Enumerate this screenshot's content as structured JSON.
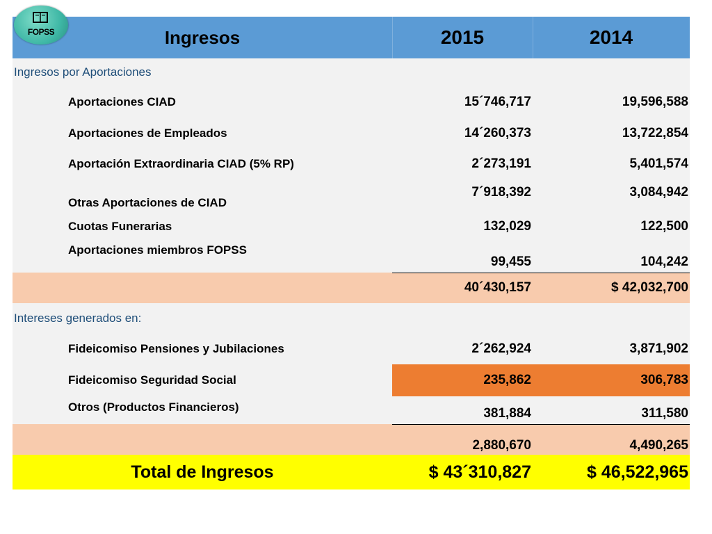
{
  "logo": {
    "text": "FOPSS",
    "icon": "book-icon"
  },
  "header": {
    "label": "Ingresos",
    "year1": "2015",
    "year2": "2014"
  },
  "sections": [
    {
      "title": "Ingresos por Aportaciones",
      "items": [
        {
          "label": "Aportaciones CIAD",
          "v2015": "15´746,717",
          "v2014": "19,596,588"
        },
        {
          "label": "Aportaciones de Empleados",
          "v2015": "14´260,373",
          "v2014": "13,722,854"
        },
        {
          "label": "Aportación Extraordinaria CIAD (5% RP)",
          "v2015": "2´273,191",
          "v2014": "5,401,574"
        },
        {
          "label": "Otras Aportaciones de CIAD",
          "v2015": "7´918,392",
          "v2014": "3,084,942"
        },
        {
          "label": "Cuotas Funerarias",
          "v2015": "132,029",
          "v2014": "122,500"
        },
        {
          "label": "Aportaciones miembros FOPSS",
          "v2015": "99,455",
          "v2014": "104,242"
        }
      ],
      "subtotal": {
        "v2015": "40´430,157",
        "v2014": "$ 42,032,700"
      }
    },
    {
      "title": "Intereses generados en:",
      "items": [
        {
          "label": "Fideicomiso Pensiones y Jubilaciones",
          "v2015": "2´262,924",
          "v2014": "3,871,902"
        },
        {
          "label": "Fideicomiso Seguridad Social",
          "v2015": "235,862",
          "v2014": "306,783"
        },
        {
          "label": "Otros (Productos Financieros)",
          "v2015": "381,884",
          "v2014": "311,580"
        }
      ],
      "subtotal": {
        "v2015": "2,880,670",
        "v2014": "4,490,265"
      }
    }
  ],
  "total": {
    "label": "Total de Ingresos",
    "v2015": "$ 43´310,827",
    "v2014": "$ 46,522,965"
  },
  "colors": {
    "header": "#5b9bd5",
    "subtotal": "#f8cbad",
    "highlight": "#ed7d31",
    "total": "#ffff00",
    "section_title": "#1f4e79"
  }
}
